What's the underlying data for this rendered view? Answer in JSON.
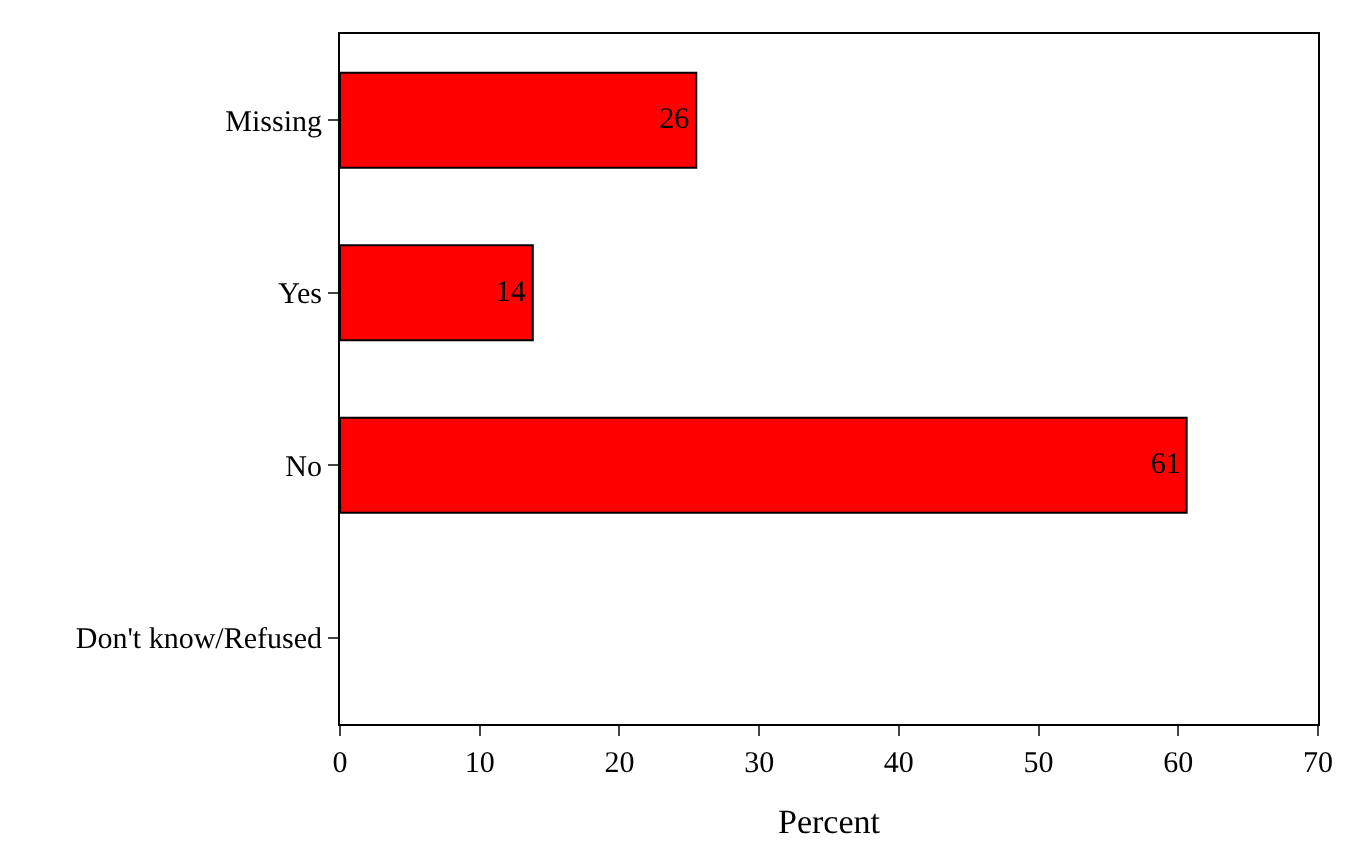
{
  "chart_data": {
    "type": "bar",
    "orientation": "horizontal",
    "xlabel": "Percent",
    "categories": [
      "Missing",
      "Yes",
      "No",
      "Don't know/Refused"
    ],
    "values": [
      25.5,
      13.8,
      60.6,
      null
    ],
    "value_labels": [
      "26",
      "14",
      "61",
      null
    ],
    "color": "#ff0000",
    "xlim": [
      0,
      70
    ],
    "xticks": [
      0,
      10,
      20,
      30,
      40,
      50,
      60,
      70
    ],
    "legend": false
  }
}
